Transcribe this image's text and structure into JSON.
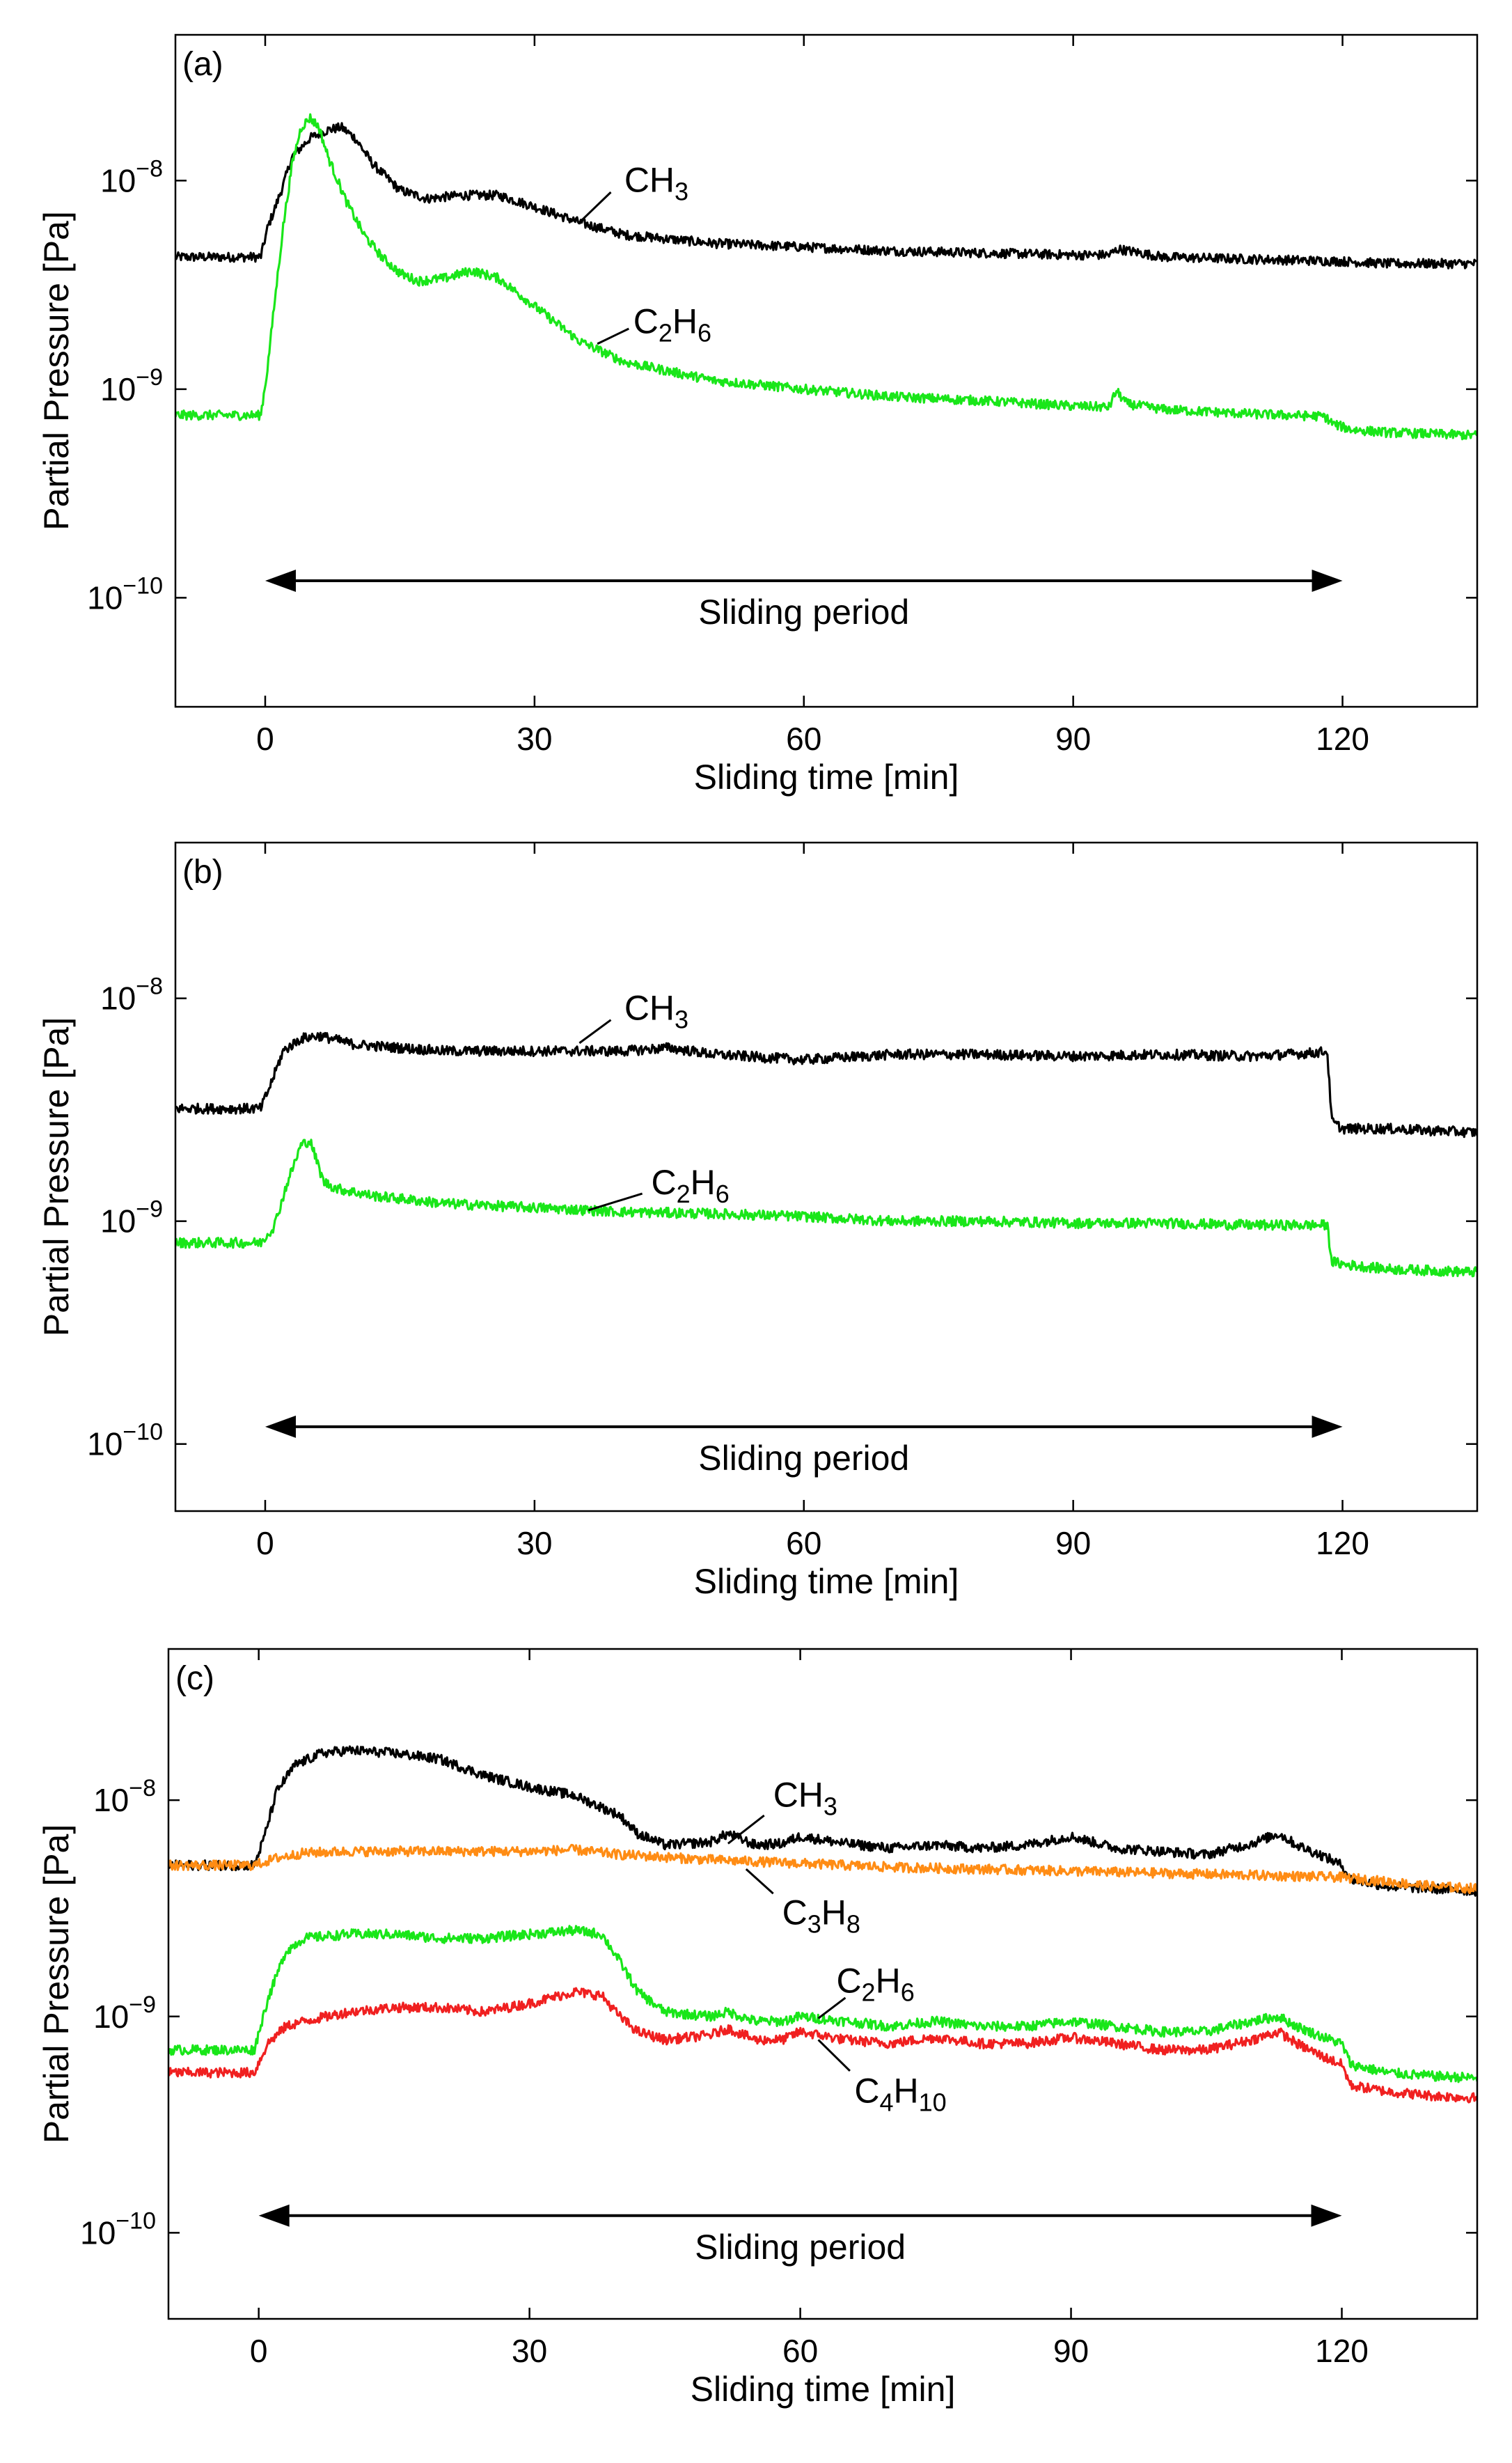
{
  "chart_data": [
    {
      "type": "line",
      "panel_label": "(a)",
      "xlabel": "Sliding time [min]",
      "ylabel": "Partial Pressure [Pa]",
      "xlim": [
        -10,
        135
      ],
      "ylim": [
        3e-11,
        5e-08
      ],
      "yscale": "log",
      "grid": false,
      "xticks": [
        0,
        30,
        60,
        90,
        120
      ],
      "x_tick_labels": [
        "0",
        "30",
        "60",
        "90",
        "120"
      ],
      "yticks": [
        1e-10,
        1e-09,
        1e-08
      ],
      "y_tick_labels": [
        {
          "base": "10",
          "exp": "−10"
        },
        {
          "base": "10",
          "exp": "−9"
        },
        {
          "base": "10",
          "exp": "−8"
        }
      ],
      "period": {
        "text": "Sliding period",
        "start": 0,
        "end": 120
      },
      "series": [
        {
          "name": "CH3",
          "label_base": "CH",
          "label_sub": "3",
          "color": "#000000",
          "x": [
            -10,
            -0.5,
            0.3,
            1,
            2,
            3,
            5,
            7,
            8.5,
            10,
            12,
            15,
            18,
            22,
            26,
            30,
            35,
            40,
            50,
            60,
            70,
            80,
            90,
            94,
            95,
            100,
            110,
            120,
            125,
            135
          ],
          "y": [
            4.3e-09,
            4.3e-09,
            6e-09,
            7.2e-09,
            9.5e-09,
            1.3e-08,
            1.6e-08,
            1.75e-08,
            1.8e-08,
            1.6e-08,
            1.2e-08,
            9e-09,
            8.2e-09,
            8.5e-09,
            8.5e-09,
            7.5e-09,
            6.3e-09,
            5.5e-09,
            5e-09,
            4.8e-09,
            4.6e-09,
            4.5e-09,
            4.4e-09,
            4.4e-09,
            4.7e-09,
            4.3e-09,
            4.2e-09,
            4.1e-09,
            4e-09,
            4e-09
          ],
          "label_x": 40,
          "label_y": 1e-08,
          "leader_from": [
            35,
            6.3e-09
          ],
          "leader_to": [
            38.5,
            8.8e-09
          ]
        },
        {
          "name": "C2H6",
          "label_base": "C",
          "label_sub": "2",
          "label_base2": "H",
          "label_sub2": "6",
          "color": "#19e619",
          "x": [
            -10,
            -0.5,
            0.2,
            1,
            2,
            3,
            4,
            5,
            6,
            7,
            9,
            11,
            13,
            15,
            17,
            20,
            23,
            26,
            30,
            35,
            40,
            50,
            60,
            70,
            80,
            90,
            94,
            94.8,
            96,
            100,
            110,
            118,
            119,
            121,
            125,
            135
          ],
          "y": [
            7.5e-10,
            7.5e-10,
            1.2e-09,
            2.5e-09,
            6e-09,
            1.2e-08,
            1.8e-08,
            2e-08,
            1.8e-08,
            1.3e-08,
            8e-09,
            5.5e-09,
            4.3e-09,
            3.6e-09,
            3.3e-09,
            3.4e-09,
            3.7e-09,
            3.4e-09,
            2.5e-09,
            1.7e-09,
            1.35e-09,
            1.1e-09,
            1e-09,
            9.2e-10,
            8.8e-10,
            8.3e-10,
            8.2e-10,
            9.8e-10,
            8.5e-10,
            8e-10,
            7.6e-10,
            7.4e-10,
            6.8e-10,
            6.4e-10,
            6.2e-10,
            6e-10
          ],
          "label_x": 41,
          "label_y": 2.1e-09,
          "leader_from": [
            37,
            1.65e-09
          ],
          "leader_to": [
            40.5,
            1.95e-09
          ]
        }
      ]
    },
    {
      "type": "line",
      "panel_label": "(b)",
      "xlabel": "Sliding time [min]",
      "ylabel": "Partial Pressure [Pa]",
      "xlim": [
        -10,
        135
      ],
      "ylim": [
        5e-11,
        5e-08
      ],
      "yscale": "log",
      "grid": false,
      "xticks": [
        0,
        30,
        60,
        90,
        120
      ],
      "x_tick_labels": [
        "0",
        "30",
        "60",
        "90",
        "120"
      ],
      "yticks": [
        1e-10,
        1e-09,
        1e-08
      ],
      "y_tick_labels": [
        {
          "base": "10",
          "exp": "−10"
        },
        {
          "base": "10",
          "exp": "−9"
        },
        {
          "base": "10",
          "exp": "−8"
        }
      ],
      "period": {
        "text": "Sliding period",
        "start": 0,
        "end": 120
      },
      "series": [
        {
          "name": "CH3",
          "label_base": "CH",
          "label_sub": "3",
          "color": "#000000",
          "x": [
            -10,
            -0.5,
            0.5,
            2,
            4,
            6,
            10,
            20,
            30,
            40,
            45,
            50,
            60,
            70,
            80,
            90,
            100,
            110,
            117,
            118.3,
            118.8,
            120,
            125,
            135
          ],
          "y": [
            3.2e-09,
            3.2e-09,
            4e-09,
            5.8e-09,
            6.6e-09,
            6.8e-09,
            6.2e-09,
            5.8e-09,
            5.8e-09,
            5.8e-09,
            6e-09,
            5.6e-09,
            5.3e-09,
            5.6e-09,
            5.6e-09,
            5.5e-09,
            5.6e-09,
            5.5e-09,
            5.7e-09,
            5.8e-09,
            2.8e-09,
            2.6e-09,
            2.6e-09,
            2.5e-09
          ],
          "label_x": 40,
          "label_y": 9e-09,
          "leader_from": [
            35,
            6.3e-09
          ],
          "leader_to": [
            38.5,
            8e-09
          ]
        },
        {
          "name": "C2H6",
          "label_base": "C",
          "label_sub": "2",
          "label_base2": "H",
          "label_sub2": "6",
          "color": "#19e619",
          "x": [
            -10,
            -0.5,
            1,
            2.5,
            4,
            5,
            6.5,
            8,
            12,
            20,
            30,
            40,
            50,
            60,
            70,
            80,
            90,
            100,
            110,
            117,
            118.3,
            118.8,
            120,
            125,
            135
          ],
          "y": [
            8e-10,
            8e-10,
            9.5e-10,
            1.5e-09,
            2.2e-09,
            2.3e-09,
            1.5e-09,
            1.4e-09,
            1.3e-09,
            1.2e-09,
            1.15e-09,
            1.1e-09,
            1.08e-09,
            1.05e-09,
            1e-09,
            1e-09,
            9.8e-10,
            9.8e-10,
            9.6e-10,
            9.6e-10,
            9.6e-10,
            6.6e-10,
            6.4e-10,
            6.1e-10,
            5.9e-10
          ],
          "label_x": 43,
          "label_y": 1.48e-09,
          "leader_from": [
            36,
            1.12e-09
          ],
          "leader_to": [
            42,
            1.33e-09
          ]
        }
      ]
    },
    {
      "type": "line",
      "panel_label": "(c)",
      "xlabel": "Sliding time [min]",
      "ylabel": "Partial Pressure [Pa]",
      "xlim": [
        -10,
        135
      ],
      "ylim": [
        4e-11,
        5e-08
      ],
      "yscale": "log",
      "grid": false,
      "xticks": [
        0,
        30,
        60,
        90,
        120
      ],
      "x_tick_labels": [
        "0",
        "30",
        "60",
        "90",
        "120"
      ],
      "yticks": [
        1e-10,
        1e-09,
        1e-08
      ],
      "y_tick_labels": [
        {
          "base": "10",
          "exp": "−10"
        },
        {
          "base": "10",
          "exp": "−9"
        },
        {
          "base": "10",
          "exp": "−8"
        }
      ],
      "period": {
        "text": "Sliding period",
        "start": 0,
        "end": 120
      },
      "series": [
        {
          "name": "CH3",
          "label_base": "CH",
          "label_sub": "3",
          "color": "#000000",
          "x": [
            -10,
            -0.5,
            0.5,
            2,
            4,
            7,
            10,
            15,
            20,
            25,
            30,
            35,
            40,
            42,
            45,
            50,
            52,
            55,
            58,
            60,
            65,
            70,
            75,
            80,
            85,
            90,
            95,
            100,
            105,
            110,
            113,
            115,
            118,
            120,
            121,
            125,
            130,
            135
          ],
          "y": [
            5e-09,
            5e-09,
            6.5e-09,
            1.1e-08,
            1.45e-08,
            1.65e-08,
            1.7e-08,
            1.65e-08,
            1.55e-08,
            1.3e-08,
            1.15e-08,
            1.05e-08,
            8.5e-09,
            7e-09,
            6.2e-09,
            6.4e-09,
            7e-09,
            6.2e-09,
            6.3e-09,
            6.8e-09,
            6.3e-09,
            6e-09,
            6.2e-09,
            6e-09,
            6.2e-09,
            6.8e-09,
            6e-09,
            5.8e-09,
            5.6e-09,
            6.3e-09,
            7e-09,
            6.2e-09,
            5.5e-09,
            5e-09,
            4.3e-09,
            4e-09,
            3.9e-09,
            3.8e-09
          ],
          "label_x": 57,
          "label_y": 1.05e-08,
          "leader_from": [
            52,
            6.3e-09
          ],
          "leader_to": [
            56,
            8.5e-09
          ]
        },
        {
          "name": "C3H8",
          "label_base": "C",
          "label_sub": "3",
          "label_base2": "H",
          "label_sub2": "8",
          "color": "#ff8c14",
          "x": [
            -10,
            -0.5,
            2,
            5,
            10,
            20,
            30,
            35,
            40,
            50,
            60,
            70,
            80,
            90,
            100,
            110,
            120,
            125,
            130,
            135
          ],
          "y": [
            5e-09,
            5e-09,
            5.4e-09,
            5.7e-09,
            5.8e-09,
            5.8e-09,
            5.8e-09,
            5.9e-09,
            5.6e-09,
            5.3e-09,
            5.1e-09,
            4.9e-09,
            4.8e-09,
            4.7e-09,
            4.6e-09,
            4.5e-09,
            4.4e-09,
            4.2e-09,
            4e-09,
            3.9e-09
          ],
          "label_x": 58,
          "label_y": 3e-09,
          "leader_from": [
            54,
            4.8e-09
          ],
          "leader_to": [
            57,
            3.7e-09
          ]
        },
        {
          "name": "C2H6",
          "label_base": "C",
          "label_sub": "2",
          "label_base2": "H",
          "label_sub2": "6",
          "color": "#19e619",
          "x": [
            -10,
            -0.5,
            1,
            3,
            5,
            10,
            15,
            20,
            25,
            30,
            35,
            38,
            40,
            42,
            45,
            50,
            52,
            55,
            58,
            60,
            65,
            70,
            75,
            80,
            85,
            90,
            95,
            100,
            105,
            110,
            113,
            115,
            118,
            120,
            121,
            125,
            130,
            135
          ],
          "y": [
            7e-10,
            7e-10,
            1.2e-09,
            2e-09,
            2.3e-09,
            2.4e-09,
            2.4e-09,
            2.3e-09,
            2.3e-09,
            2.4e-09,
            2.5e-09,
            2.4e-09,
            1.8e-09,
            1.3e-09,
            1.05e-09,
            1e-09,
            1.05e-09,
            9.5e-10,
            9.5e-10,
            1e-09,
            9.5e-10,
            9e-10,
            9.5e-10,
            9e-10,
            9e-10,
            9.5e-10,
            9e-10,
            8.5e-10,
            8.5e-10,
            9.5e-10,
            1e-09,
            9e-10,
            8e-10,
            7.5e-10,
            6e-10,
            5.5e-10,
            5.3e-10,
            5.2e-10
          ],
          "label_x": 64,
          "label_y": 1.45e-09,
          "leader_from": [
            62,
            9.8e-10
          ],
          "leader_to": [
            65,
            1.22e-09
          ]
        },
        {
          "name": "C4H10",
          "label_base": "C",
          "label_sub": "4",
          "label_base2": "H",
          "label_sub2": "10",
          "color": "#f02020",
          "x": [
            -10,
            -0.5,
            1,
            3,
            5,
            10,
            15,
            20,
            25,
            30,
            35,
            38,
            40,
            42,
            45,
            50,
            52,
            55,
            58,
            60,
            65,
            70,
            75,
            80,
            85,
            90,
            95,
            100,
            105,
            110,
            113,
            115,
            118,
            120,
            121,
            125,
            130,
            135
          ],
          "y": [
            5.5e-10,
            5.5e-10,
            7.5e-10,
            9e-10,
            9.5e-10,
            1.05e-09,
            1.1e-09,
            1.1e-09,
            1.05e-09,
            1.15e-09,
            1.3e-09,
            1.25e-09,
            1e-09,
            8.5e-10,
            7.8e-10,
            8.2e-10,
            8.8e-10,
            7.8e-10,
            7.8e-10,
            8.5e-10,
            7.8e-10,
            7.5e-10,
            8e-10,
            7.5e-10,
            7.5e-10,
            8e-10,
            7.5e-10,
            7e-10,
            7e-10,
            7.8e-10,
            8.5e-10,
            7.5e-10,
            6.5e-10,
            6e-10,
            4.8e-10,
            4.5e-10,
            4.3e-10,
            4.2e-10
          ],
          "label_x": 66,
          "label_y": 4.5e-10,
          "leader_from": [
            62,
            7.8e-10
          ],
          "leader_to": [
            65.5,
            5.6e-10
          ]
        }
      ]
    }
  ]
}
